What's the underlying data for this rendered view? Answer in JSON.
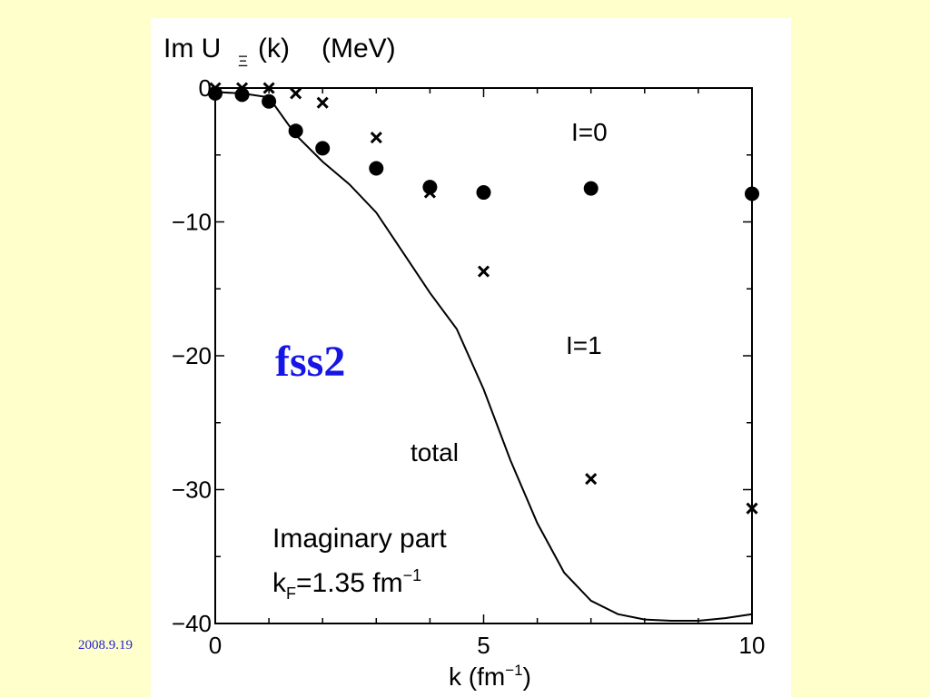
{
  "slide": {
    "date": "2008.9.19",
    "colors": {
      "background": "#ffffcc",
      "panel": "#ffffff",
      "fss2": "#1515e6",
      "date": "#1f1fd1"
    }
  },
  "chart_data": {
    "type": "scatter",
    "title": "Im U",
    "title_subscript": "Ξ",
    "title_arg": "(k)",
    "title_unit": "(MeV)",
    "xlabel": "k  (fm",
    "xlabel_sup": "−1",
    "xlabel_close": ")",
    "xlim": [
      0,
      10
    ],
    "ylim": [
      -40,
      0
    ],
    "xticks": [
      0,
      5,
      10
    ],
    "xtick_labels": [
      "0",
      "5",
      "10"
    ],
    "yticks": [
      0,
      -10,
      -20,
      -30,
      -40
    ],
    "ytick_labels": [
      "0",
      "−10",
      "−20",
      "−30",
      "−40"
    ],
    "series": [
      {
        "name": "I=0",
        "marker": "circle",
        "x": [
          0,
          0.5,
          1,
          1.5,
          2,
          3,
          4,
          5,
          7,
          10
        ],
        "y": [
          -0.4,
          -0.5,
          -1.0,
          -3.2,
          -4.5,
          -6.0,
          -7.4,
          -7.8,
          -7.5,
          -7.9
        ]
      },
      {
        "name": "I=1",
        "marker": "cross",
        "x": [
          0,
          0.5,
          1,
          1.5,
          2,
          3,
          4,
          5,
          7,
          10
        ],
        "y": [
          0.0,
          0.0,
          0.0,
          -0.4,
          -1.1,
          -3.7,
          -7.8,
          -13.7,
          -29.2,
          -31.4
        ]
      },
      {
        "name": "total",
        "marker": "line",
        "x": [
          0,
          0.5,
          1,
          1.5,
          2,
          2.5,
          3,
          3.5,
          4,
          4.5,
          5,
          5.5,
          6,
          6.5,
          7,
          7.5,
          8,
          8.5,
          9,
          9.5,
          10
        ],
        "y": [
          -0.3,
          -0.4,
          -0.7,
          -3.5,
          -5.5,
          -7.2,
          -9.3,
          -12.3,
          -15.3,
          -18.0,
          -22.5,
          -27.8,
          -32.5,
          -36.2,
          -38.3,
          -39.3,
          -39.7,
          -39.8,
          -39.8,
          -39.6,
          -39.3
        ]
      }
    ],
    "annotations": {
      "i0": "I=0",
      "i1": "I=1",
      "total": "total",
      "fss2": "fss2",
      "part": "Imaginary part",
      "kf_prefix": "k",
      "kf_sub": "F",
      "kf_value": "=1.35 fm",
      "kf_sup": "−1"
    }
  }
}
